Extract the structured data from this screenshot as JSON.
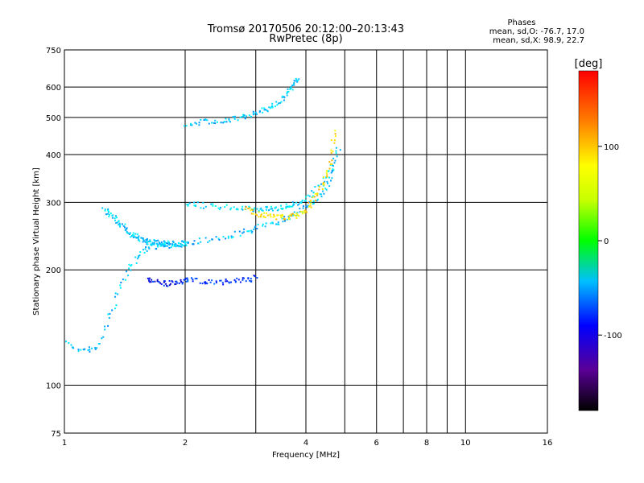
{
  "chart_data": {
    "type": "scatter",
    "title": "Tromsø 20170506 20:12:00–20:13:43",
    "subtitle": "RwPretec (8p)",
    "xlabel": "Frequency [MHz]",
    "ylabel": "Stationary phase Virtual Height [km]",
    "x_scale": "log",
    "y_scale": "log",
    "xlim": [
      1,
      16
    ],
    "ylim": [
      75,
      750
    ],
    "x_ticks": [
      1,
      2,
      4,
      6,
      8,
      10,
      16
    ],
    "y_ticks": [
      75,
      100,
      200,
      300,
      400,
      500,
      600,
      750
    ],
    "x_grid": [
      1,
      2,
      3,
      4,
      5,
      6,
      7,
      8,
      9,
      10,
      16
    ],
    "y_grid": [
      100,
      200,
      300,
      400,
      500,
      600
    ],
    "grid": true,
    "phases": {
      "title": "Phases",
      "o_line": "mean, sd,O: -76.7, 17.0",
      "x_line": "mean, sd,X: 98.9, 22.7"
    },
    "colorbar": {
      "label": "[deg]",
      "range": [
        -180,
        180
      ],
      "ticks": [
        100,
        0,
        -100
      ]
    },
    "traces": [
      {
        "name": "",
        "x": [
          1.0,
          1.1,
          1.2,
          1.3,
          1.4,
          1.5,
          1.6,
          1.7,
          1.8,
          1.9,
          2.0,
          2.2,
          2.5,
          2.8,
          3.0,
          3.3,
          3.6,
          3.9,
          4.2,
          4.5,
          4.7
        ],
        "y": [
          130,
          124,
          125,
          155,
          190,
          215,
          230,
          232,
          233,
          234,
          236,
          240,
          245,
          252,
          258,
          265,
          276,
          288,
          305,
          330,
          380
        ],
        "phase": -80
      },
      {
        "name": "",
        "x": [
          1.25,
          1.3,
          1.35,
          1.4,
          1.45,
          1.5,
          1.55,
          1.6,
          1.65,
          1.7,
          1.75,
          1.8,
          1.9,
          2.0
        ],
        "y": [
          290,
          280,
          270,
          260,
          250,
          245,
          240,
          238,
          237,
          236,
          235,
          235,
          235,
          236
        ],
        "phase": -75
      },
      {
        "name": "",
        "x": [
          2.0,
          2.2,
          2.5,
          2.8,
          3.0,
          3.2,
          3.4,
          3.6,
          3.8,
          4.0,
          4.3,
          4.6,
          4.8
        ],
        "y": [
          300,
          296,
          292,
          290,
          289,
          290,
          292,
          295,
          300,
          310,
          330,
          365,
          420
        ],
        "phase": -70
      },
      {
        "name": "",
        "x": [
          2.8,
          3.0,
          3.2,
          3.4,
          3.6,
          3.8,
          4.0,
          4.2,
          4.4,
          4.6,
          4.7
        ],
        "y": [
          290,
          282,
          278,
          276,
          276,
          280,
          290,
          310,
          340,
          385,
          470
        ],
        "phase": 110
      },
      {
        "name": "",
        "x": [
          2.0,
          2.2,
          2.4,
          2.6,
          2.8,
          3.0,
          3.2,
          3.4,
          3.6,
          3.7,
          3.8
        ],
        "y": [
          485,
          488,
          492,
          497,
          505,
          515,
          530,
          550,
          580,
          610,
          640
        ],
        "phase": -78
      },
      {
        "name": "",
        "x": [
          1.6,
          1.7,
          1.8,
          1.9,
          2.0
        ],
        "y": [
          190,
          187,
          185,
          186,
          188
        ],
        "phase": -130
      },
      {
        "name": "",
        "x": [
          2.0,
          2.2,
          2.4,
          2.6,
          2.8,
          3.0
        ],
        "y": [
          190,
          188,
          186,
          187,
          189,
          192
        ],
        "phase": -120
      }
    ]
  }
}
